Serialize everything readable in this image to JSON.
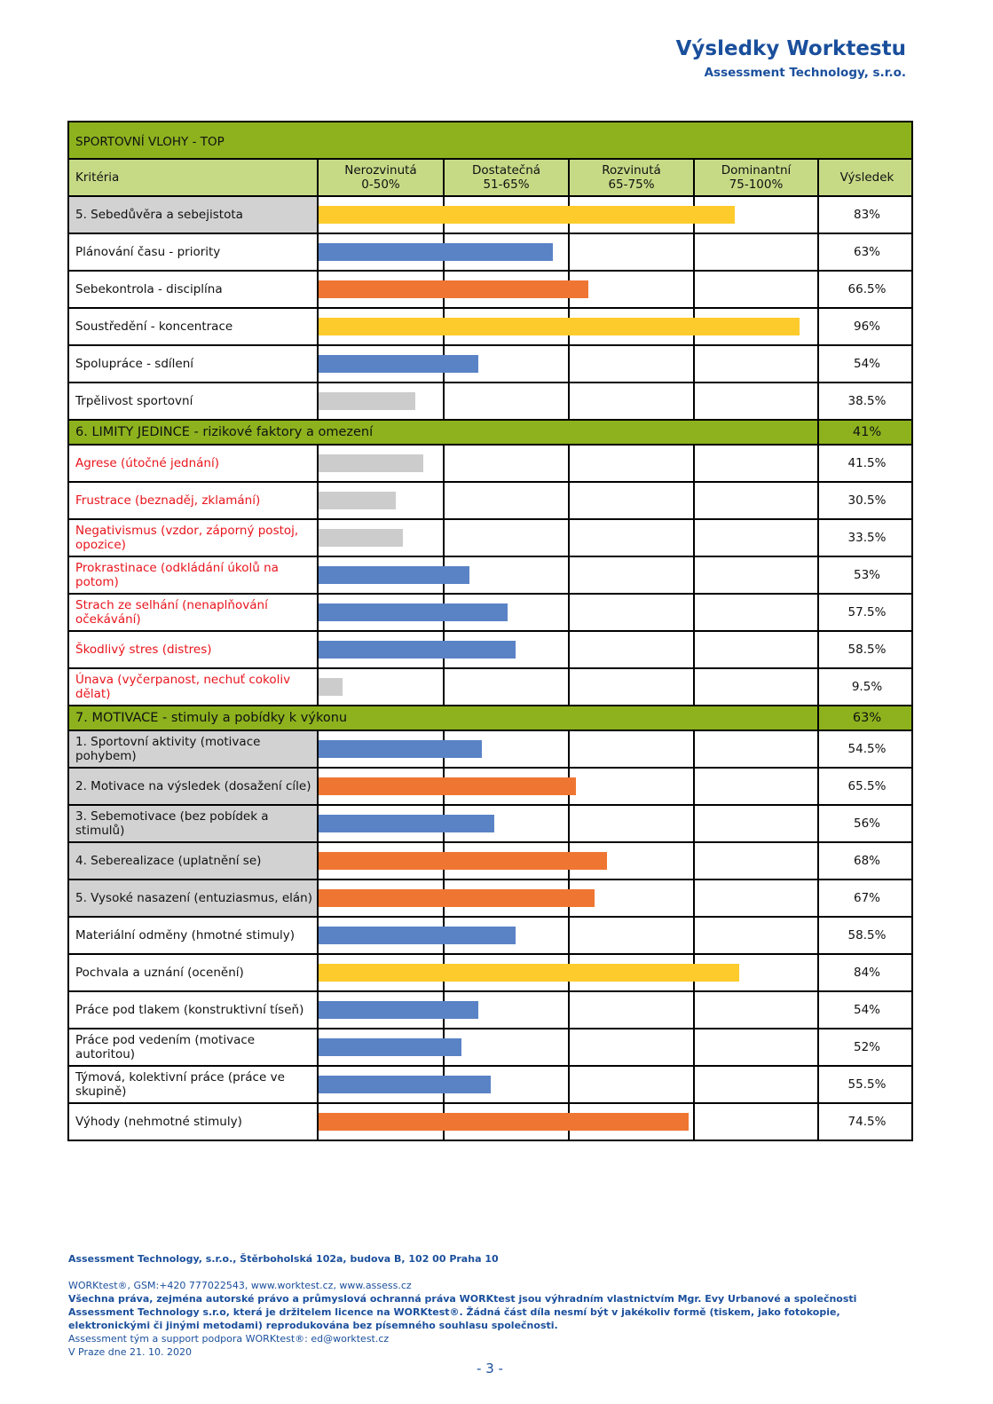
{
  "header": {
    "title": "Výsledky Worktestu",
    "subtitle": "Assessment Technology, s.r.o."
  },
  "table": {
    "criteria_header": "Kritéria",
    "result_header": "Výsledek",
    "bands": [
      {
        "name": "Nerozvinutá",
        "range": "0-50%",
        "min": 0,
        "max": 50,
        "color": "#cccccc"
      },
      {
        "name": "Dostatečná",
        "range": "51-65%",
        "min": 51,
        "max": 65,
        "color": "#5a83c6"
      },
      {
        "name": "Rozvinutá",
        "range": "65-75%",
        "min": 65,
        "max": 75,
        "color": "#ef7632"
      },
      {
        "name": "Dominantní",
        "range": "75-100%",
        "min": 75,
        "max": 100,
        "color": "#fdcb2c"
      }
    ],
    "sections": [
      {
        "title": "SPORTOVNÍ VLOHY - TOP",
        "label_color": "#111111",
        "rows": [
          {
            "label": "5. Sebedůvěra a sebejistota",
            "value": 83,
            "value_label": "83%",
            "shaded": true
          },
          {
            "label": "Plánování času - priority",
            "value": 63,
            "value_label": "63%",
            "shaded": false
          },
          {
            "label": "Sebekontrola - disciplína",
            "value": 66.5,
            "value_label": "66.5%",
            "shaded": false
          },
          {
            "label": "Soustředění - koncentrace",
            "value": 96,
            "value_label": "96%",
            "shaded": false
          },
          {
            "label": "Spolupráce - sdílení",
            "value": 54,
            "value_label": "54%",
            "shaded": false
          },
          {
            "label": "Trpělivost sportovní",
            "value": 38.5,
            "value_label": "38.5%",
            "shaded": false
          }
        ]
      },
      {
        "title": "6. LIMITY JEDINCE - rizikové faktory a omezení",
        "value": 41,
        "value_label": "41%",
        "label_color": "#e8141c",
        "rows": [
          {
            "label": "Agrese (útočné jednání)",
            "value": 41.5,
            "value_label": "41.5%",
            "shaded": false
          },
          {
            "label": "Frustrace (beznaděj, zklamání)",
            "value": 30.5,
            "value_label": "30.5%",
            "shaded": false
          },
          {
            "label": "Negativismus (vzdor, záporný postoj, opozice)",
            "value": 33.5,
            "value_label": "33.5%",
            "shaded": false
          },
          {
            "label": "Prokrastinace (odkládání úkolů na potom)",
            "value": 53,
            "value_label": "53%",
            "shaded": false
          },
          {
            "label": "Strach ze selhání (nenaplňování očekávání)",
            "value": 57.5,
            "value_label": "57.5%",
            "shaded": false
          },
          {
            "label": "Škodlivý stres (distres)",
            "value": 58.5,
            "value_label": "58.5%",
            "shaded": false
          },
          {
            "label": "Únava (vyčerpanost, nechuť cokoliv dělat)",
            "value": 9.5,
            "value_label": "9.5%",
            "shaded": false
          }
        ]
      },
      {
        "title": "7. MOTIVACE - stimuly a pobídky k výkonu",
        "value": 63,
        "value_label": "63%",
        "label_color": "#111111",
        "rows": [
          {
            "label": "1. Sportovní aktivity (motivace pohybem)",
            "value": 54.5,
            "value_label": "54.5%",
            "shaded": true
          },
          {
            "label": "2. Motivace na výsledek (dosažení cíle)",
            "value": 65.5,
            "value_label": "65.5%",
            "shaded": true
          },
          {
            "label": "3. Sebemotivace (bez pobídek a stimulů)",
            "value": 56,
            "value_label": "56%",
            "shaded": true
          },
          {
            "label": "4. Seberealizace (uplatnění se)",
            "value": 68,
            "value_label": "68%",
            "shaded": true
          },
          {
            "label": "5. Vysoké nasazení (entuziasmus, elán)",
            "value": 67,
            "value_label": "67%",
            "shaded": true
          },
          {
            "label": "Materiální odměny (hmotné stimuly)",
            "value": 58.5,
            "value_label": "58.5%",
            "shaded": false
          },
          {
            "label": "Pochvala a uznání (ocenění)",
            "value": 84,
            "value_label": "84%",
            "shaded": false
          },
          {
            "label": "Práce pod tlakem (konstruktivní tíseň)",
            "value": 54,
            "value_label": "54%",
            "shaded": false
          },
          {
            "label": "Práce pod vedením (motivace autoritou)",
            "value": 52,
            "value_label": "52%",
            "shaded": false
          },
          {
            "label": "Týmová, kolektivní práce (práce ve skupině)",
            "value": 55.5,
            "value_label": "55.5%",
            "shaded": false
          },
          {
            "label": "Výhody (nehmotné stimuly)",
            "value": 74.5,
            "value_label": "74.5%",
            "shaded": false
          }
        ]
      }
    ]
  },
  "footer": {
    "address": "Assessment Technology, s.r.o., Štěrboholská 102a, budova B, 102 00 Praha 10",
    "contact": "WORKtest®, GSM:+420 777022543, www.worktest.cz, www.assess.cz",
    "copyright": "Všechna práva, zejména autorské právo a průmyslová ochranná práva WORKtest jsou výhradním vlastnictvím Mgr. Evy Urbanové a společnosti Assessment Technology s.r.o, která je držitelem licence na WORKtest®. Žádná část díla nesmí být v jakékoliv formě (tiskem, jako fotokopie, elektronickými či jinými metodami) reprodukována bez písemného souhlasu společnosti.",
    "support": "Assessment tým a support podpora WORKtest®: ed@worktest.cz",
    "date": "V Praze dne 21. 10. 2020",
    "page": "- 3 -"
  }
}
